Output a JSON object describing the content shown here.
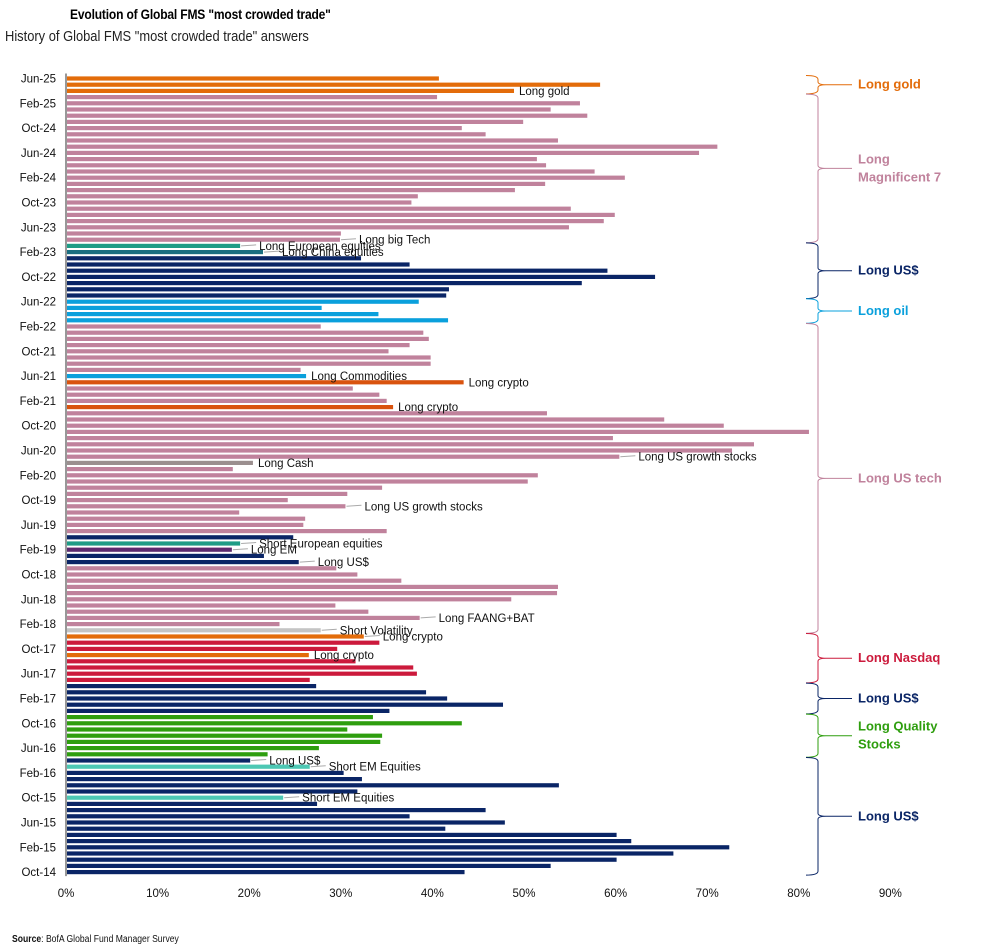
{
  "header": {
    "title": "Evolution of Global FMS \"most crowded trade\"",
    "subtitle": "History of Global FMS \"most crowded trade\" answers"
  },
  "footer": {
    "source_label": "Source",
    "source_text": ": BofA Global Fund Manager Survey"
  },
  "colors": {
    "orange": "#e36c0a",
    "orange_red": "#d9530e",
    "pink": "#c0829c",
    "navy": "#0a2566",
    "light_blue": "#0aa0dc",
    "teal_green": "#1e9c86",
    "dark_teal": "#1a6e80",
    "gray": "#9b8f8f",
    "light_gray": "#c4c4c4",
    "purple": "#5c2a6e",
    "crimson": "#cc1a3c",
    "green": "#2e9e0e",
    "aqua": "#4dc8b4"
  },
  "chart_data": {
    "type": "bar",
    "orientation": "horizontal",
    "title": "Evolution of Global FMS \"most crowded trade\"",
    "subtitle": "History of Global FMS \"most crowded trade\" answers",
    "xlabel": "",
    "ylabel": "",
    "xlim": [
      0,
      90
    ],
    "x_ticks": [
      "0%",
      "10%",
      "20%",
      "30%",
      "40%",
      "50%",
      "60%",
      "70%",
      "80%",
      "90%"
    ],
    "y_tick_labels": [
      "Jun-25",
      "Feb-25",
      "Oct-24",
      "Jun-24",
      "Feb-24",
      "Oct-23",
      "Jun-23",
      "Feb-23",
      "Oct-22",
      "Jun-22",
      "Feb-22",
      "Oct-21",
      "Jun-21",
      "Feb-21",
      "Oct-20",
      "Jun-20",
      "Feb-20",
      "Oct-19",
      "Jun-19",
      "Feb-19",
      "Oct-18",
      "Jun-18",
      "Feb-18",
      "Oct-17",
      "Jun-17",
      "Feb-17",
      "Oct-16",
      "Jun-16",
      "Feb-16",
      "Oct-15",
      "Jun-15",
      "Feb-15",
      "Oct-14"
    ],
    "y_tick_every": 4,
    "grid": false,
    "value_unit": "%",
    "values": [
      40.6,
      58.2,
      48.8,
      40.4,
      56.0,
      52.8,
      56.8,
      49.8,
      43.1,
      45.7,
      53.6,
      71.0,
      69.0,
      51.3,
      52.3,
      57.6,
      60.9,
      52.2,
      48.9,
      38.3,
      37.6,
      55.0,
      59.8,
      58.6,
      54.8,
      29.9,
      29.8,
      18.9,
      21.4,
      32.1,
      37.4,
      59.0,
      64.2,
      56.2,
      41.7,
      41.4,
      38.4,
      27.8,
      34.0,
      41.6,
      27.7,
      38.9,
      39.5,
      37.4,
      35.1,
      39.7,
      39.7,
      25.5,
      26.1,
      43.3,
      31.2,
      34.1,
      34.9,
      35.6,
      52.4,
      65.2,
      71.7,
      81.0,
      59.6,
      75.0,
      72.6,
      60.3,
      20.3,
      18.1,
      51.4,
      50.3,
      34.4,
      30.6,
      24.1,
      30.4,
      18.8,
      26.0,
      25.8,
      34.9,
      24.7,
      18.9,
      18.0,
      21.5,
      25.3,
      29.4,
      31.7,
      36.5,
      53.6,
      53.5,
      48.5,
      29.3,
      32.9,
      38.5,
      23.2,
      27.7,
      32.4,
      34.1,
      29.5,
      26.4,
      31.5,
      37.8,
      38.2,
      26.5,
      27.2,
      39.2,
      41.5,
      47.6,
      35.2,
      33.4,
      43.1,
      30.6,
      34.4,
      34.2,
      27.5,
      21.9,
      20.0,
      26.5,
      30.2,
      32.2,
      53.7,
      31.7,
      23.6,
      27.3,
      45.7,
      37.4,
      47.8,
      41.3,
      60.0,
      61.6,
      72.3,
      66.2,
      60.0,
      52.8,
      43.4
    ],
    "bar_colors": [
      "orange",
      "orange",
      "orange",
      "pink",
      "pink",
      "pink",
      "pink",
      "pink",
      "pink",
      "pink",
      "pink",
      "pink",
      "pink",
      "pink",
      "pink",
      "pink",
      "pink",
      "pink",
      "pink",
      "pink",
      "pink",
      "pink",
      "pink",
      "pink",
      "pink",
      "pink",
      "pink",
      "teal_green",
      "dark_teal",
      "navy",
      "navy",
      "navy",
      "navy",
      "navy",
      "navy",
      "navy",
      "light_blue",
      "light_blue",
      "light_blue",
      "light_blue",
      "pink",
      "pink",
      "pink",
      "pink",
      "pink",
      "pink",
      "pink",
      "pink",
      "light_blue",
      "orange_red",
      "pink",
      "pink",
      "pink",
      "orange_red",
      "pink",
      "pink",
      "pink",
      "pink",
      "pink",
      "pink",
      "pink",
      "pink",
      "gray",
      "pink",
      "pink",
      "pink",
      "pink",
      "pink",
      "pink",
      "pink",
      "pink",
      "pink",
      "pink",
      "pink",
      "navy",
      "teal_green",
      "purple",
      "navy",
      "navy",
      "pink",
      "pink",
      "pink",
      "pink",
      "pink",
      "pink",
      "pink",
      "pink",
      "pink",
      "pink",
      "light_gray",
      "orange",
      "crimson",
      "crimson",
      "orange",
      "crimson",
      "crimson",
      "crimson",
      "crimson",
      "navy",
      "navy",
      "navy",
      "navy",
      "navy",
      "green",
      "green",
      "green",
      "green",
      "green",
      "green",
      "green",
      "navy",
      "aqua",
      "navy",
      "navy",
      "navy",
      "navy",
      "aqua",
      "navy",
      "navy",
      "navy",
      "navy",
      "navy",
      "navy",
      "navy",
      "navy",
      "navy",
      "navy",
      "navy",
      "navy"
    ],
    "annotations": [
      {
        "row": 3,
        "text": "Long gold",
        "leader": false
      },
      {
        "row": 27,
        "text": "Long big Tech",
        "leader": true
      },
      {
        "row": 28,
        "text": "Long European equities",
        "leader": true
      },
      {
        "row": 29,
        "text": "Long China equities",
        "leader": true
      },
      {
        "row": 49,
        "text": "Long Commodities",
        "leader": false
      },
      {
        "row": 50,
        "text": "Long crypto",
        "leader": false
      },
      {
        "row": 54,
        "text": "Long crypto",
        "leader": false
      },
      {
        "row": 62,
        "text": "Long US growth stocks",
        "leader": true
      },
      {
        "row": 63,
        "text": "Long Cash",
        "leader": false
      },
      {
        "row": 70,
        "text": "Long US growth stocks",
        "leader": true
      },
      {
        "row": 76,
        "text": "Short European equities",
        "leader": true
      },
      {
        "row": 77,
        "text": "Long EM",
        "leader": true
      },
      {
        "row": 79,
        "text": "Long US$",
        "leader": true
      },
      {
        "row": 88,
        "text": "Long FAANG+BAT",
        "leader": true
      },
      {
        "row": 90,
        "text": "Short Volatility",
        "leader": true
      },
      {
        "row": 91,
        "text": "Long crypto",
        "leader": true
      },
      {
        "row": 94,
        "text": "Long crypto",
        "leader": false
      },
      {
        "row": 111,
        "text": "Long US$",
        "leader": true
      },
      {
        "row": 112,
        "text": "Short EM Equities",
        "leader": true
      },
      {
        "row": 117,
        "text": "Short EM Equities",
        "leader": true
      }
    ],
    "groups": [
      {
        "label": [
          "Long gold"
        ],
        "from_row": 1,
        "to_row": 3,
        "color": "orange"
      },
      {
        "label": [
          "Long",
          "Magnificent 7"
        ],
        "from_row": 4,
        "to_row": 27,
        "color": "pink"
      },
      {
        "label": [
          "Long US$"
        ],
        "from_row": 28,
        "to_row": 36,
        "color": "navy"
      },
      {
        "label": [
          "Long oil"
        ],
        "from_row": 37,
        "to_row": 40,
        "color": "light_blue"
      },
      {
        "label": [
          "Long US tech"
        ],
        "from_row": 41,
        "to_row": 90,
        "color": "pink"
      },
      {
        "label": [
          "Long Nasdaq"
        ],
        "from_row": 91,
        "to_row": 98,
        "color": "crimson"
      },
      {
        "label": [
          "Long US$"
        ],
        "from_row": 99,
        "to_row": 103,
        "color": "navy"
      },
      {
        "label": [
          "Long Quality",
          "Stocks"
        ],
        "from_row": 104,
        "to_row": 110,
        "color": "green"
      },
      {
        "label": [
          "Long US$"
        ],
        "from_row": 111,
        "to_row": 129,
        "color": "navy"
      }
    ]
  }
}
